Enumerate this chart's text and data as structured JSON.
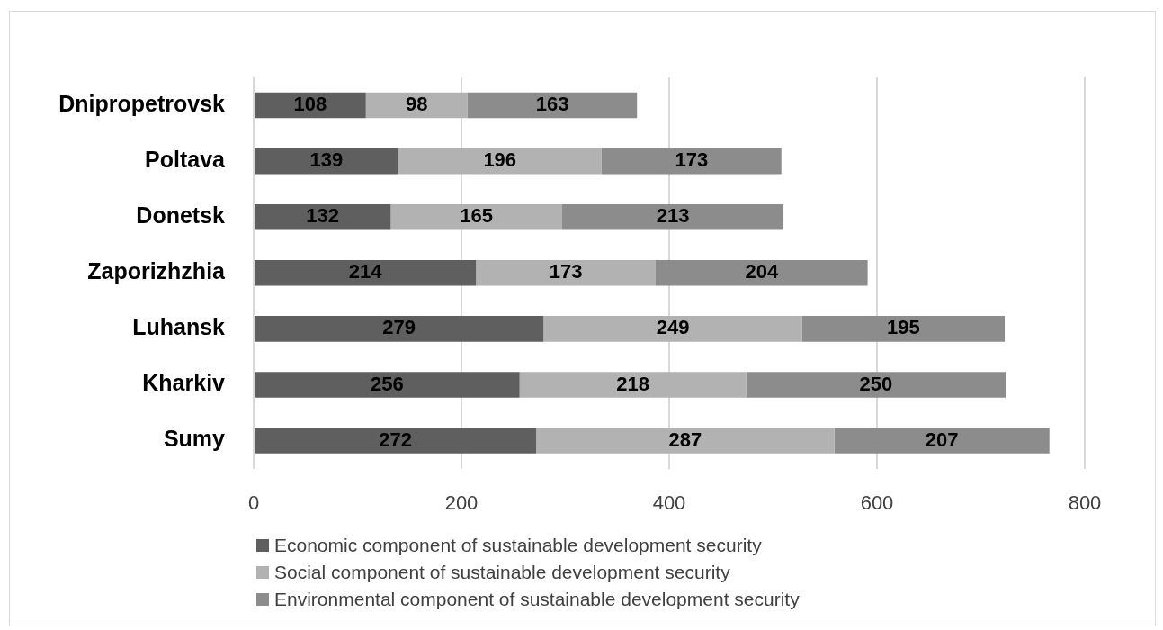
{
  "chart_data": {
    "type": "bar",
    "orientation": "horizontal",
    "stacked": true,
    "categories": [
      "Dnipropetrovsk",
      "Poltava",
      "Donetsk",
      "Zaporizhzhia",
      "Luhansk",
      "Kharkiv",
      "Sumy"
    ],
    "series": [
      {
        "name": "Economic component of sustainable development security",
        "color": "#5f5f5f",
        "values": [
          108,
          139,
          132,
          214,
          279,
          256,
          272
        ]
      },
      {
        "name": "Social component of sustainable development security",
        "color": "#b2b2b2",
        "values": [
          98,
          196,
          165,
          173,
          249,
          218,
          287
        ]
      },
      {
        "name": "Environmental component of sustainable development security",
        "color": "#8c8c8c",
        "values": [
          163,
          173,
          213,
          204,
          195,
          250,
          207
        ]
      }
    ],
    "xlim": [
      0,
      800
    ],
    "xticks": [
      0,
      200,
      400,
      600,
      800
    ],
    "grid": "x",
    "legend": "bottom",
    "data_labels": true
  }
}
